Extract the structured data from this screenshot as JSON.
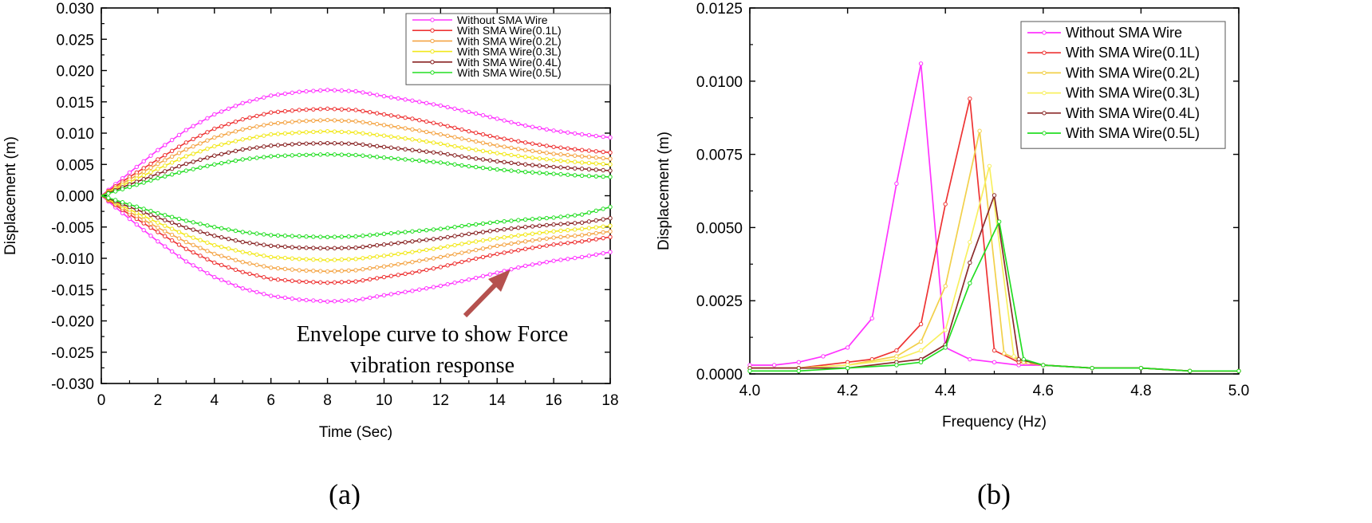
{
  "panels": [
    {
      "label": "(a)"
    },
    {
      "label": "(b)"
    }
  ],
  "annotation": {
    "line1": "Envelope curve to show Force",
    "line2": "vibration response",
    "arrow_color": "#b5514e"
  },
  "chart_data": [
    {
      "type": "line",
      "panel": "(a)",
      "xlabel": "Time (Sec)",
      "ylabel": "Displacement (m)",
      "xlim": [
        0,
        18
      ],
      "ylim": [
        -0.03,
        0.03
      ],
      "x_ticks": [
        0,
        2,
        4,
        6,
        8,
        10,
        12,
        14,
        16,
        18
      ],
      "y_ticks": [
        -0.03,
        -0.025,
        -0.02,
        -0.015,
        -0.01,
        -0.005,
        0.0,
        0.005,
        0.01,
        0.015,
        0.02,
        0.025,
        0.03
      ],
      "y_tick_labels": [
        "-0.030",
        "-0.025",
        "-0.020",
        "-0.015",
        "-0.010",
        "-0.005",
        "0.000",
        "0.005",
        "0.010",
        "0.015",
        "0.020",
        "0.025",
        "0.030"
      ],
      "grid": false,
      "legend_position": "top-right",
      "x": [
        0,
        1,
        2,
        3,
        4,
        5,
        6,
        7,
        8,
        9,
        10,
        11,
        12,
        13,
        14,
        15,
        16,
        17,
        18
      ],
      "series": [
        {
          "name": "Without SMA Wire",
          "color": "#ff33ff",
          "upper": [
            0,
            0.0037,
            0.0073,
            0.0105,
            0.013,
            0.0148,
            0.016,
            0.0166,
            0.0169,
            0.0167,
            0.0159,
            0.0152,
            0.0144,
            0.0134,
            0.0123,
            0.0112,
            0.0104,
            0.0098,
            0.0093
          ],
          "lower": [
            0,
            -0.0037,
            -0.0073,
            -0.0105,
            -0.013,
            -0.0148,
            -0.016,
            -0.0166,
            -0.0169,
            -0.0167,
            -0.0159,
            -0.0152,
            -0.0144,
            -0.0134,
            -0.0123,
            -0.0112,
            -0.0104,
            -0.0098,
            -0.009
          ]
        },
        {
          "name": "With SMA Wire(0.1L)",
          "color": "#ee3333",
          "upper": [
            0,
            0.003,
            0.0058,
            0.0085,
            0.0107,
            0.0122,
            0.0133,
            0.0137,
            0.0139,
            0.0137,
            0.013,
            0.0123,
            0.0114,
            0.0103,
            0.0093,
            0.0085,
            0.0078,
            0.0073,
            0.0069
          ],
          "lower": [
            0,
            -0.003,
            -0.0058,
            -0.0085,
            -0.0107,
            -0.0122,
            -0.0133,
            -0.0137,
            -0.0139,
            -0.0137,
            -0.013,
            -0.0123,
            -0.0114,
            -0.0103,
            -0.0093,
            -0.0085,
            -0.0078,
            -0.0073,
            -0.0066
          ]
        },
        {
          "name": "With SMA Wire(0.2L)",
          "color": "#f4a444",
          "upper": [
            0,
            0.0026,
            0.0051,
            0.0074,
            0.0093,
            0.0106,
            0.0115,
            0.0119,
            0.0121,
            0.0119,
            0.0113,
            0.0106,
            0.0098,
            0.0089,
            0.008,
            0.0073,
            0.0067,
            0.0063,
            0.0059
          ],
          "lower": [
            0,
            -0.0026,
            -0.0051,
            -0.0074,
            -0.0093,
            -0.0106,
            -0.0115,
            -0.0119,
            -0.0121,
            -0.0119,
            -0.0113,
            -0.0106,
            -0.0098,
            -0.0089,
            -0.008,
            -0.0073,
            -0.0067,
            -0.0063,
            -0.0057
          ]
        },
        {
          "name": "With SMA Wire(0.3L)",
          "color": "#f2e81a",
          "upper": [
            0,
            0.0022,
            0.0043,
            0.0063,
            0.0079,
            0.009,
            0.0098,
            0.0101,
            0.0103,
            0.0101,
            0.0096,
            0.009,
            0.0083,
            0.0075,
            0.0068,
            0.0062,
            0.0057,
            0.0053,
            0.005
          ],
          "lower": [
            0,
            -0.0022,
            -0.0043,
            -0.0063,
            -0.0079,
            -0.009,
            -0.0098,
            -0.0101,
            -0.0103,
            -0.0101,
            -0.0096,
            -0.009,
            -0.0083,
            -0.0075,
            -0.0068,
            -0.0062,
            -0.0057,
            -0.0053,
            -0.0048
          ]
        },
        {
          "name": "With SMA Wire(0.4L)",
          "color": "#882222",
          "upper": [
            0,
            0.0018,
            0.0035,
            0.0051,
            0.0064,
            0.0074,
            0.008,
            0.0083,
            0.0084,
            0.0083,
            0.0078,
            0.0073,
            0.0068,
            0.0061,
            0.0055,
            0.005,
            0.0046,
            0.0043,
            0.004
          ],
          "lower": [
            0,
            -0.0018,
            -0.0035,
            -0.0051,
            -0.0064,
            -0.0074,
            -0.008,
            -0.0083,
            -0.0084,
            -0.0083,
            -0.0078,
            -0.0073,
            -0.0068,
            -0.0061,
            -0.0055,
            -0.005,
            -0.0046,
            -0.0043,
            -0.0036
          ]
        },
        {
          "name": "With SMA Wire(0.5L)",
          "color": "#22dd22",
          "upper": [
            0,
            0.0014,
            0.0028,
            0.004,
            0.005,
            0.0058,
            0.0063,
            0.0065,
            0.0066,
            0.0065,
            0.0061,
            0.0057,
            0.0053,
            0.0047,
            0.0042,
            0.0038,
            0.0035,
            0.0032,
            0.003
          ],
          "lower": [
            0,
            -0.0014,
            -0.0028,
            -0.004,
            -0.005,
            -0.0058,
            -0.0063,
            -0.0065,
            -0.0066,
            -0.0065,
            -0.0061,
            -0.0057,
            -0.0053,
            -0.0047,
            -0.0042,
            -0.0038,
            -0.0035,
            -0.003,
            -0.0018
          ]
        }
      ]
    },
    {
      "type": "line",
      "panel": "(b)",
      "xlabel": "Frequency (Hz)",
      "ylabel": "Displacement (m)",
      "xlim": [
        4.0,
        5.0
      ],
      "ylim": [
        0,
        0.0125
      ],
      "x_ticks": [
        4.0,
        4.2,
        4.4,
        4.6,
        4.8,
        5.0
      ],
      "x_tick_labels": [
        "4.0",
        "4.2",
        "4.4",
        "4.6",
        "4.8",
        "5.0"
      ],
      "y_ticks": [
        0,
        0.0025,
        0.005,
        0.0075,
        0.01,
        0.0125
      ],
      "y_tick_labels": [
        "0.0000",
        "0.0025",
        "0.0050",
        "0.0075",
        "0.0100",
        "0.0125"
      ],
      "grid": false,
      "legend_position": "top-right",
      "series": [
        {
          "name": "Without SMA Wire",
          "color": "#ff33ff",
          "x": [
            4.0,
            4.05,
            4.1,
            4.15,
            4.2,
            4.25,
            4.3,
            4.35,
            4.4,
            4.45,
            4.5,
            4.55,
            4.6,
            4.7,
            4.8,
            4.9,
            5.0
          ],
          "y": [
            0.0003,
            0.0003,
            0.0004,
            0.0006,
            0.0009,
            0.0019,
            0.0065,
            0.0106,
            0.0009,
            0.0005,
            0.0004,
            0.0003,
            0.0003,
            0.0002,
            0.0002,
            0.0001,
            0.0001
          ]
        },
        {
          "name": "With SMA Wire(0.1L)",
          "color": "#ee3333",
          "x": [
            4.0,
            4.1,
            4.2,
            4.25,
            4.3,
            4.35,
            4.4,
            4.45,
            4.5,
            4.55,
            4.6,
            4.7,
            4.8,
            4.9,
            5.0
          ],
          "y": [
            0.0002,
            0.0002,
            0.0004,
            0.0005,
            0.0008,
            0.0017,
            0.0058,
            0.0094,
            0.0008,
            0.0004,
            0.0003,
            0.0002,
            0.0002,
            0.0001,
            0.0001
          ]
        },
        {
          "name": "With SMA Wire(0.2L)",
          "color": "#f2d04a",
          "x": [
            4.0,
            4.1,
            4.2,
            4.3,
            4.35,
            4.4,
            4.47,
            4.52,
            4.56,
            4.6,
            4.7,
            4.8,
            4.9,
            5.0
          ],
          "y": [
            0.0002,
            0.0002,
            0.0003,
            0.0006,
            0.0011,
            0.003,
            0.0083,
            0.0007,
            0.0004,
            0.0003,
            0.0002,
            0.0002,
            0.0001,
            0.0001
          ]
        },
        {
          "name": "With SMA Wire(0.3L)",
          "color": "#f8f060",
          "x": [
            4.0,
            4.1,
            4.2,
            4.3,
            4.35,
            4.4,
            4.45,
            4.49,
            4.54,
            4.57,
            4.6,
            4.7,
            4.8,
            4.9,
            5.0
          ],
          "y": [
            0.0002,
            0.0002,
            0.0003,
            0.0005,
            0.0008,
            0.0015,
            0.0045,
            0.0071,
            0.0006,
            0.0004,
            0.0003,
            0.0002,
            0.0002,
            0.0001,
            0.0001
          ]
        },
        {
          "name": "With SMA Wire(0.4L)",
          "color": "#8b2a2a",
          "x": [
            4.0,
            4.1,
            4.2,
            4.3,
            4.35,
            4.4,
            4.45,
            4.5,
            4.55,
            4.6,
            4.7,
            4.8,
            4.9,
            5.0
          ],
          "y": [
            0.0002,
            0.0002,
            0.0002,
            0.0004,
            0.0005,
            0.001,
            0.0038,
            0.0061,
            0.0005,
            0.0003,
            0.0002,
            0.0002,
            0.0001,
            0.0001
          ]
        },
        {
          "name": "With SMA Wire(0.5L)",
          "color": "#22dd22",
          "x": [
            4.0,
            4.1,
            4.2,
            4.3,
            4.35,
            4.4,
            4.45,
            4.51,
            4.56,
            4.6,
            4.7,
            4.8,
            4.9,
            5.0
          ],
          "y": [
            0.0001,
            0.0001,
            0.0002,
            0.0003,
            0.0004,
            0.0009,
            0.0031,
            0.0052,
            0.0005,
            0.0003,
            0.0002,
            0.0002,
            0.0001,
            0.0001
          ]
        }
      ]
    }
  ]
}
